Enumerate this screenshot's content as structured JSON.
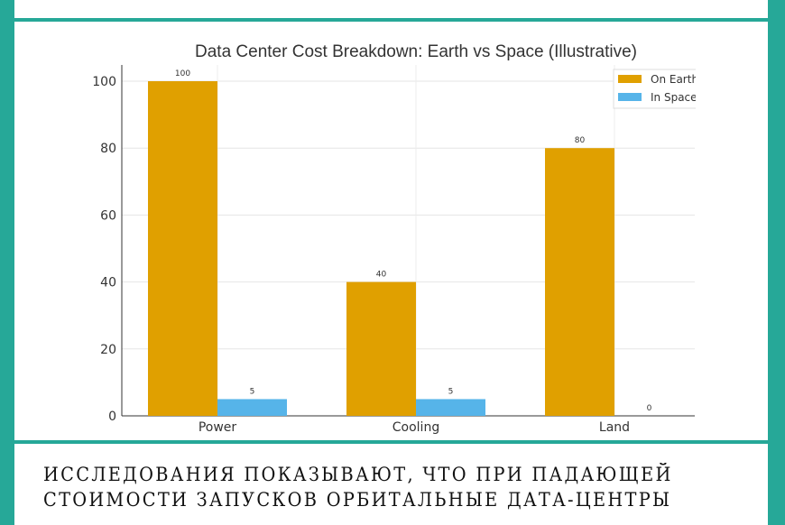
{
  "caption": {
    "line1": "ИССЛЕДОВАНИЯ ПОКАЗЫВАЮТ, ЧТО ПРИ ПАДАЮЩЕЙ",
    "line2": "СТОИМОСТИ ЗАПУСКОВ ОРБИТАЛЬНЫЕ ДАТА-ЦЕНТРЫ"
  },
  "chart_data": {
    "type": "bar",
    "title": "Data Center Cost Breakdown: Earth vs Space (Illustrative)",
    "categories": [
      "Power",
      "Cooling",
      "Land"
    ],
    "series": [
      {
        "name": "On Earth",
        "values": [
          100,
          40,
          80
        ],
        "labels": [
          "100",
          "40",
          "80"
        ],
        "color": "#e0a000"
      },
      {
        "name": "In Space",
        "values": [
          5,
          5,
          0
        ],
        "labels": [
          "5",
          "5",
          "0"
        ],
        "color": "#56b4e9"
      }
    ],
    "yticks": [
      0,
      20,
      40,
      60,
      80,
      100
    ],
    "ylim": [
      0,
      105
    ],
    "grid": true,
    "legend": "top-right"
  }
}
